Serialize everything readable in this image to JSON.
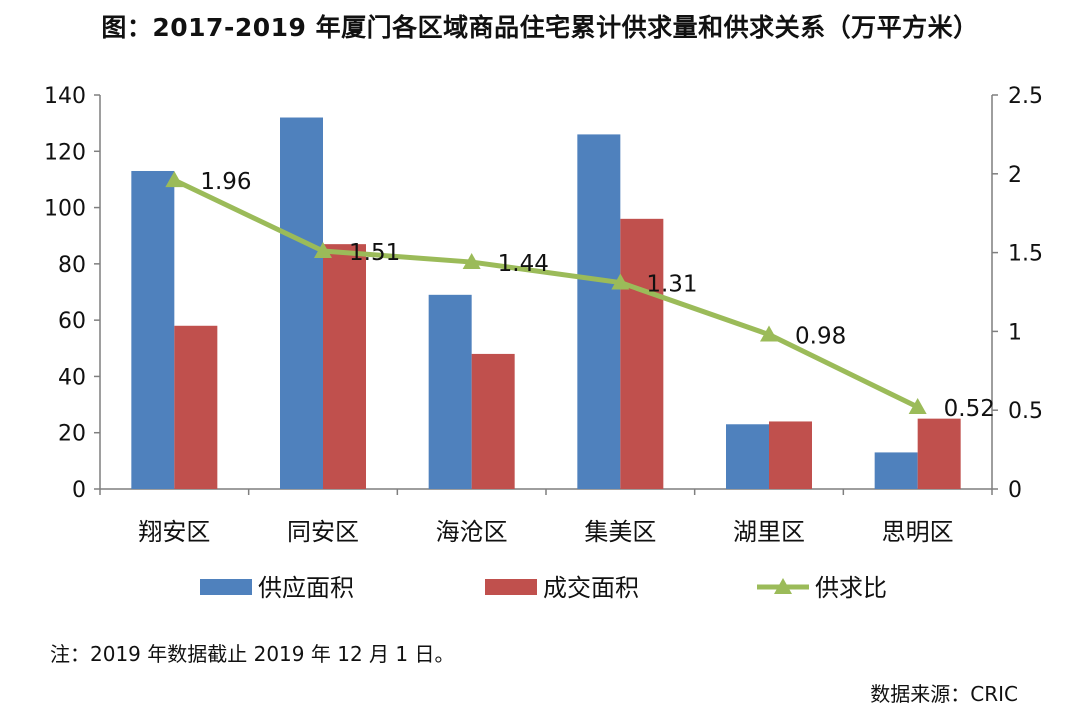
{
  "title": "图：2017-2019 年厦门各区域商品住宅累计供求量和供求关系（万平方米）",
  "note": "注：2019 年数据截止 2019 年 12 月 1 日。",
  "source": "数据来源：CRIC",
  "colors": {
    "supply": "#4f81bd",
    "deal": "#c0504d",
    "ratio": "#9bbb59",
    "axis": "#7f7f7f"
  },
  "chart_data": {
    "type": "bar",
    "categories": [
      "翔安区",
      "同安区",
      "海沧区",
      "集美区",
      "湖里区",
      "思明区"
    ],
    "series": [
      {
        "name": "供应面积",
        "type": "bar",
        "axis": "left",
        "values": [
          113,
          132,
          69,
          126,
          23,
          13
        ]
      },
      {
        "name": "成交面积",
        "type": "bar",
        "axis": "left",
        "values": [
          58,
          87,
          48,
          96,
          24,
          25
        ]
      },
      {
        "name": "供求比",
        "type": "line",
        "axis": "right",
        "marker": "triangle",
        "values": [
          1.96,
          1.51,
          1.44,
          1.31,
          0.98,
          0.52
        ],
        "labels": [
          "1.96",
          "1.51",
          "1.44",
          "1.31",
          "0.98",
          "0.52"
        ]
      }
    ],
    "y_left": {
      "lim": [
        0,
        140
      ],
      "ticks": [
        "0",
        "20",
        "40",
        "60",
        "80",
        "100",
        "120",
        "140"
      ]
    },
    "y_right": {
      "lim": [
        0,
        2.5
      ],
      "ticks": [
        "0",
        "0.5",
        "1",
        "1.5",
        "2",
        "2.5"
      ]
    },
    "grid": false,
    "legend": "bottom"
  }
}
